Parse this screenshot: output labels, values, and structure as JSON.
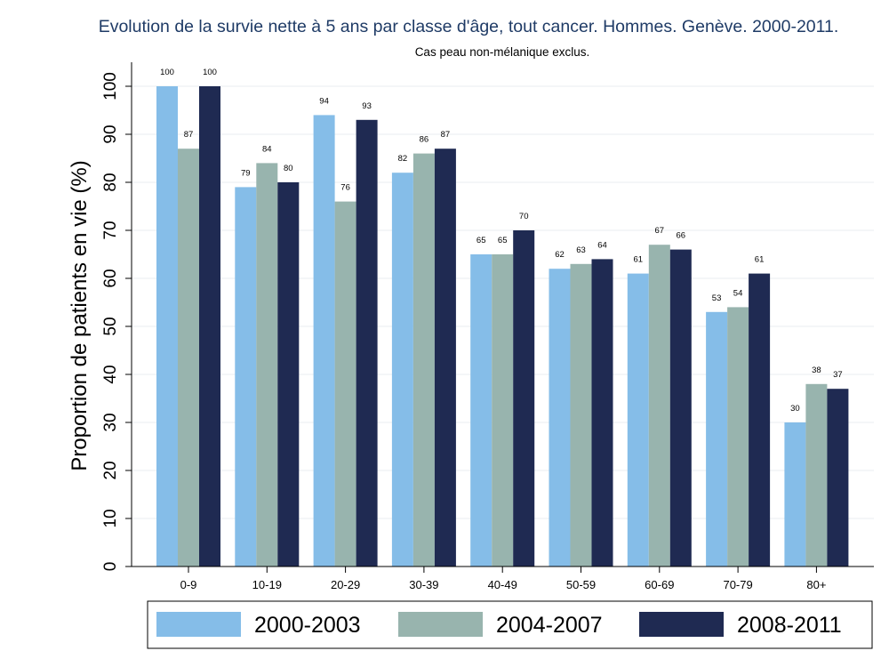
{
  "chart_data": {
    "type": "bar",
    "title": "Evolution de la survie nette à 5 ans par classe d'âge, tout cancer. Hommes. Genève. 2000-2011.",
    "subtitle": "Cas peau non-mélanique exclus.",
    "xlabel": "",
    "ylabel": "Proportion de patients en vie (%)",
    "ylim": [
      0,
      100
    ],
    "yticks": [
      0,
      10,
      20,
      30,
      40,
      50,
      60,
      70,
      80,
      90,
      100
    ],
    "grid": true,
    "legend_position": "bottom",
    "categories": [
      "0-9",
      "10-19",
      "20-29",
      "30-39",
      "40-49",
      "50-59",
      "60-69",
      "70-79",
      "80+"
    ],
    "series": [
      {
        "name": "2000-2003",
        "color": "#85bde8",
        "values": [
          100,
          79,
          94,
          82,
          65,
          62,
          61,
          53,
          30
        ]
      },
      {
        "name": "2004-2007",
        "color": "#98b4ae",
        "values": [
          87,
          84,
          76,
          86,
          65,
          63,
          67,
          54,
          38
        ]
      },
      {
        "name": "2008-2011",
        "color": "#1f2a52",
        "values": [
          100,
          80,
          93,
          87,
          70,
          64,
          66,
          61,
          37
        ]
      }
    ]
  }
}
